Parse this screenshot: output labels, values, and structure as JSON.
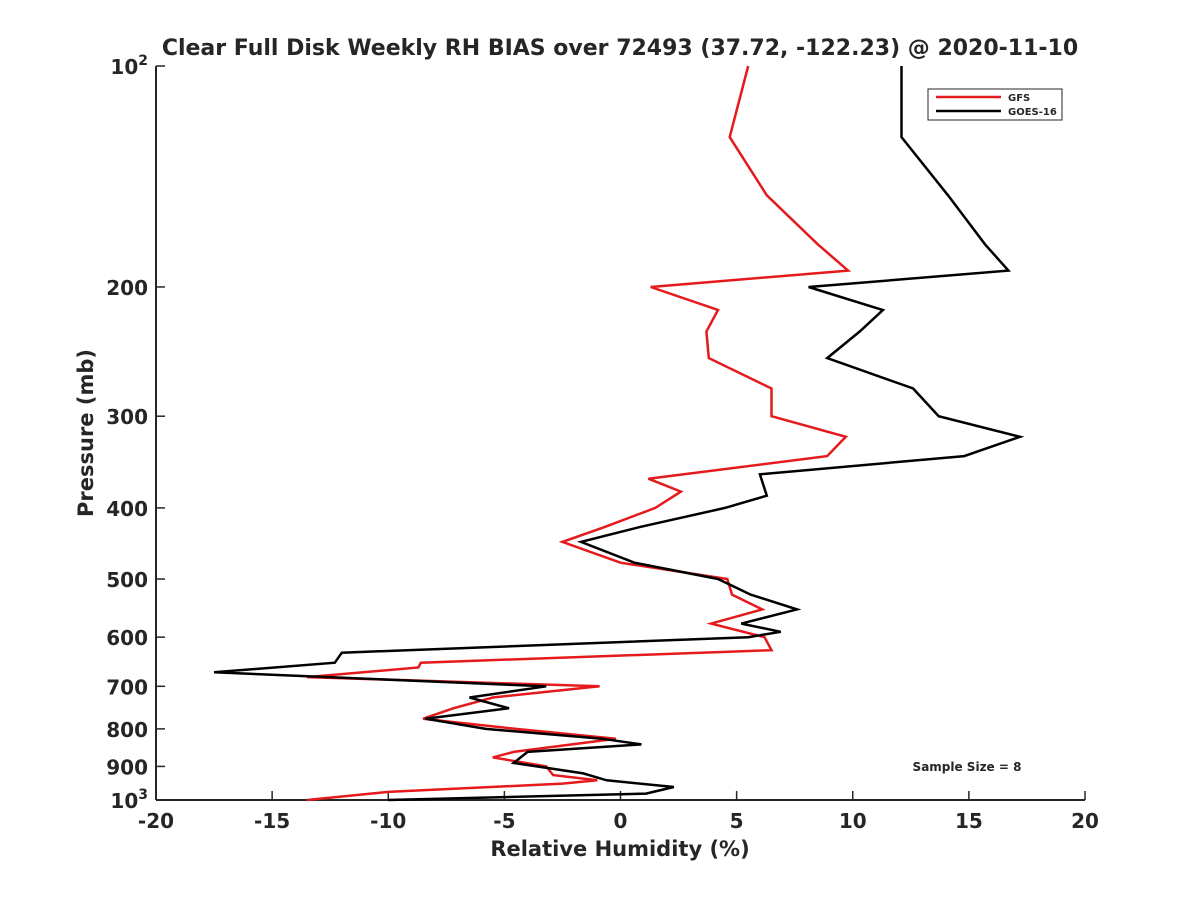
{
  "chart_data": {
    "type": "line",
    "title": "Clear Full Disk Weekly RH BIAS over 72493 (37.72, -122.23) @ 2020-11-10",
    "xlabel": "Relative Humidity (%)",
    "ylabel": "Pressure (mb)",
    "xlim": [
      -20,
      20
    ],
    "ylim": [
      100,
      1000
    ],
    "y_scale": "log",
    "y_reversed": true,
    "x_ticks": [
      -20,
      -15,
      -10,
      -5,
      0,
      5,
      10,
      15,
      20
    ],
    "x_tick_labels": [
      "-20",
      "-15",
      "-10",
      "-5",
      "0",
      "5",
      "10",
      "15",
      "20"
    ],
    "y_ticks": [
      100,
      200,
      300,
      400,
      500,
      600,
      700,
      800,
      900,
      1000
    ],
    "y_tick_labels": [
      {
        "base": "10",
        "exp": "2"
      },
      {
        "text": "200"
      },
      {
        "text": "300"
      },
      {
        "text": "400"
      },
      {
        "text": "500"
      },
      {
        "text": "600"
      },
      {
        "text": "700"
      },
      {
        "text": "800"
      },
      {
        "text": "900"
      },
      {
        "base": "10",
        "exp": "3"
      }
    ],
    "grid": false,
    "legend_position": "top-right",
    "annotation": "Sample Size = 8",
    "series": [
      {
        "name": "GFS",
        "color": "#e41a1c",
        "points": [
          [
            5.5,
            100
          ],
          [
            4.7,
            125
          ],
          [
            6.3,
            150
          ],
          [
            8.5,
            175
          ],
          [
            9.8,
            190
          ],
          [
            1.3,
            200
          ],
          [
            4.2,
            215
          ],
          [
            3.7,
            230
          ],
          [
            3.8,
            250
          ],
          [
            6.5,
            275
          ],
          [
            6.5,
            300
          ],
          [
            9.7,
            320
          ],
          [
            8.9,
            340
          ],
          [
            1.2,
            365
          ],
          [
            2.6,
            380
          ],
          [
            1.5,
            400
          ],
          [
            -0.7,
            425
          ],
          [
            -2.5,
            445
          ],
          [
            0.0,
            475
          ],
          [
            4.6,
            500
          ],
          [
            4.8,
            525
          ],
          [
            6.1,
            550
          ],
          [
            3.9,
            575
          ],
          [
            6.2,
            600
          ],
          [
            6.5,
            625
          ],
          [
            -8.6,
            650
          ],
          [
            -8.7,
            660
          ],
          [
            -13.5,
            680
          ],
          [
            -0.9,
            700
          ],
          [
            -5.5,
            725
          ],
          [
            -7.2,
            750
          ],
          [
            -8.5,
            775
          ],
          [
            -4.5,
            800
          ],
          [
            -0.2,
            825
          ],
          [
            -4.6,
            860
          ],
          [
            -5.5,
            875
          ],
          [
            -3.2,
            900
          ],
          [
            -2.9,
            925
          ],
          [
            -1.0,
            940
          ],
          [
            -2.5,
            950
          ],
          [
            -10.0,
            975
          ],
          [
            -13.5,
            1000
          ]
        ]
      },
      {
        "name": "GOES-16",
        "color": "#000000",
        "points": [
          [
            12.1,
            100
          ],
          [
            12.1,
            125
          ],
          [
            14.1,
            150
          ],
          [
            15.7,
            175
          ],
          [
            16.7,
            190
          ],
          [
            8.1,
            200
          ],
          [
            11.3,
            215
          ],
          [
            10.3,
            230
          ],
          [
            8.9,
            250
          ],
          [
            12.6,
            275
          ],
          [
            13.7,
            300
          ],
          [
            17.2,
            320
          ],
          [
            14.8,
            340
          ],
          [
            6.0,
            360
          ],
          [
            6.3,
            385
          ],
          [
            4.5,
            400
          ],
          [
            0.8,
            425
          ],
          [
            -1.7,
            445
          ],
          [
            0.6,
            475
          ],
          [
            4.2,
            500
          ],
          [
            5.6,
            525
          ],
          [
            7.6,
            550
          ],
          [
            5.2,
            575
          ],
          [
            6.9,
            590
          ],
          [
            5.5,
            600
          ],
          [
            -12.0,
            630
          ],
          [
            -12.3,
            650
          ],
          [
            -17.5,
            670
          ],
          [
            -3.2,
            700
          ],
          [
            -6.5,
            725
          ],
          [
            -4.8,
            750
          ],
          [
            -8.4,
            775
          ],
          [
            -5.8,
            800
          ],
          [
            -0.8,
            825
          ],
          [
            0.9,
            840
          ],
          [
            -4.0,
            860
          ],
          [
            -4.6,
            890
          ],
          [
            -1.6,
            920
          ],
          [
            -0.6,
            940
          ],
          [
            2.3,
            960
          ],
          [
            1.1,
            980
          ],
          [
            -10.0,
            1000
          ]
        ]
      }
    ]
  }
}
